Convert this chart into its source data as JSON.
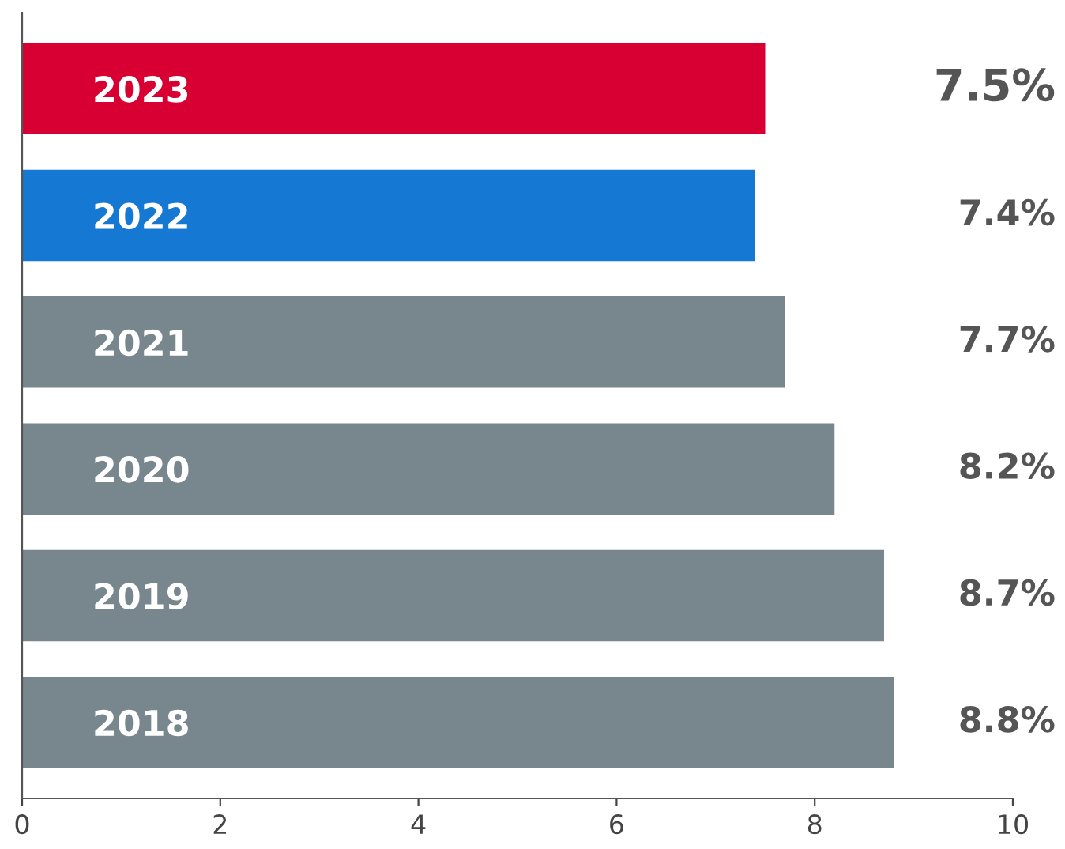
{
  "chart_data": {
    "type": "bar",
    "orientation": "horizontal",
    "categories": [
      "2023",
      "2022",
      "2021",
      "2020",
      "2019",
      "2018"
    ],
    "values": [
      7.5,
      7.4,
      7.7,
      8.2,
      8.7,
      8.8
    ],
    "colors": [
      "#d80032",
      "#1578d3",
      "#78868d",
      "#78868d",
      "#78868d",
      "#78868d"
    ],
    "value_labels": [
      "7.5%",
      "7.4%",
      "7.7%",
      "8.2%",
      "8.7%",
      "8.8%"
    ],
    "xlim": [
      0,
      10
    ],
    "xticks": [
      0,
      2,
      4,
      6,
      8,
      10
    ],
    "grid": false,
    "legend": false
  }
}
